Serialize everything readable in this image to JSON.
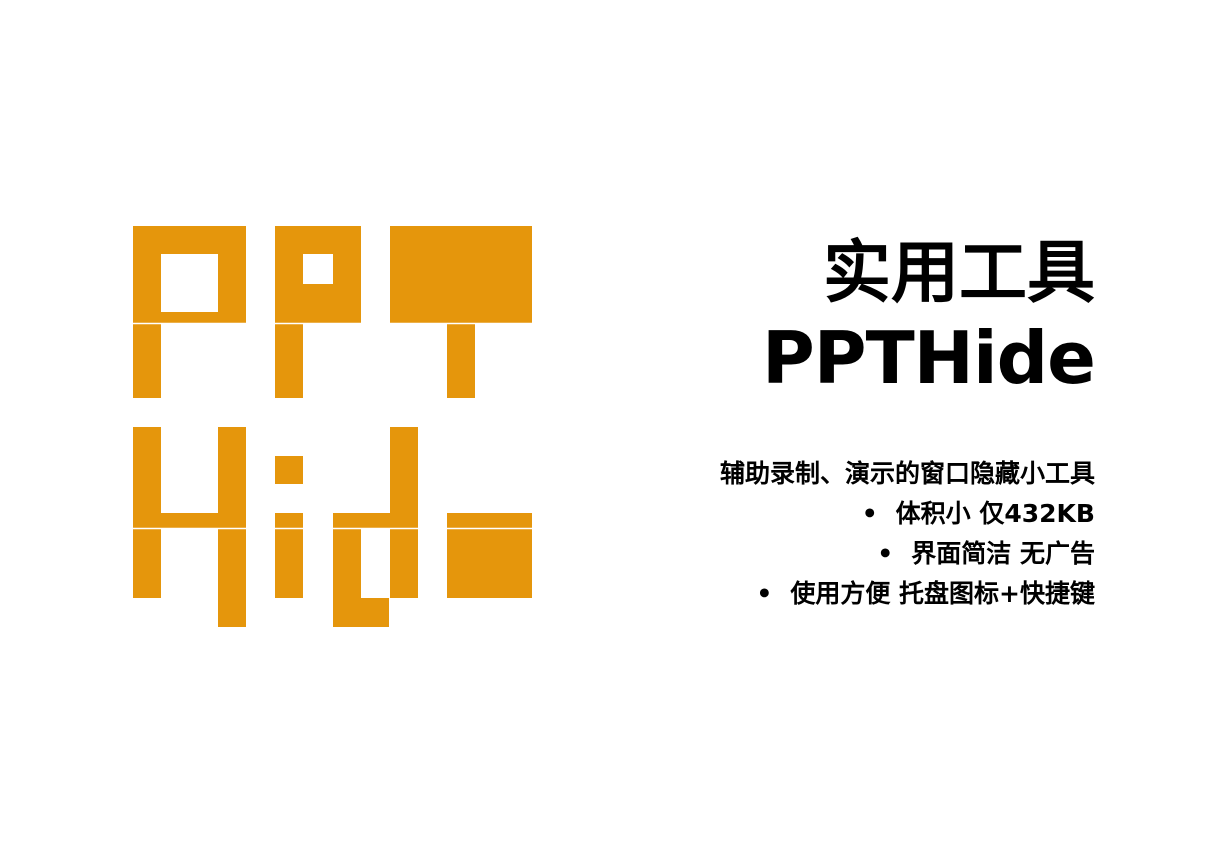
{
  "colors": {
    "accent": "#E5960C",
    "text": "#000000",
    "background": "#FFFFFF"
  },
  "logo": {
    "rows": [
      "PPT",
      "Hide"
    ]
  },
  "headline": {
    "line1": "实用工具",
    "line2": "PPTHide"
  },
  "description": {
    "intro": "辅助录制、演示的窗口隐藏小工具",
    "bullet_symbol": "•",
    "bullets": [
      "体积小 仅432KB",
      "界面简洁 无广告",
      "使用方便 托盘图标+快捷键"
    ]
  }
}
